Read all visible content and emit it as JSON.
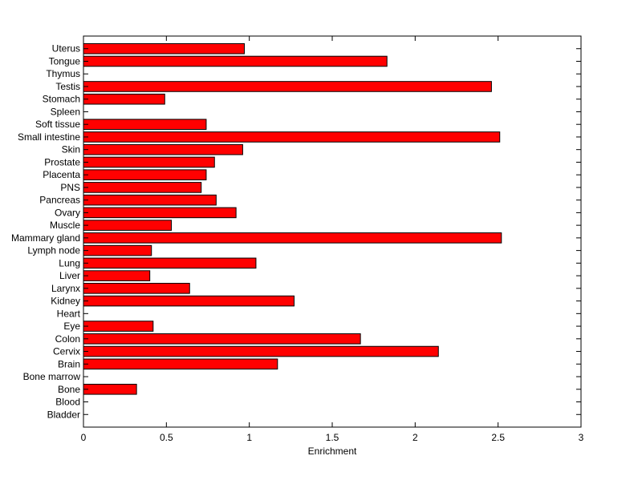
{
  "chart_data": {
    "type": "bar",
    "orientation": "horizontal",
    "categories": [
      "Uterus",
      "Tongue",
      "Thymus",
      "Testis",
      "Stomach",
      "Spleen",
      "Soft tissue",
      "Small intestine",
      "Skin",
      "Prostate",
      "Placenta",
      "PNS",
      "Pancreas",
      "Ovary",
      "Muscle",
      "Mammary gland",
      "Lymph node",
      "Lung",
      "Liver",
      "Larynx",
      "Kidney",
      "Heart",
      "Eye",
      "Colon",
      "Cervix",
      "Brain",
      "Bone marrow",
      "Bone",
      "Blood",
      "Bladder"
    ],
    "values": [
      0.97,
      1.83,
      0,
      2.46,
      0.49,
      0,
      0.74,
      2.51,
      0.96,
      0.79,
      0.74,
      0.71,
      0.8,
      0.92,
      0.53,
      2.52,
      0.41,
      1.04,
      0.4,
      0.64,
      1.27,
      0,
      0.42,
      1.67,
      2.14,
      1.17,
      0,
      0.32,
      0,
      0
    ],
    "title": "",
    "xlabel": "Enrichment",
    "ylabel": "",
    "xlim": [
      0,
      3
    ],
    "xticks": [
      "0",
      "0.5",
      "1",
      "1.5",
      "2",
      "2.5",
      "3"
    ],
    "grid": false,
    "bar_color": "#ff0000",
    "bar_edge_color": "#000000"
  }
}
